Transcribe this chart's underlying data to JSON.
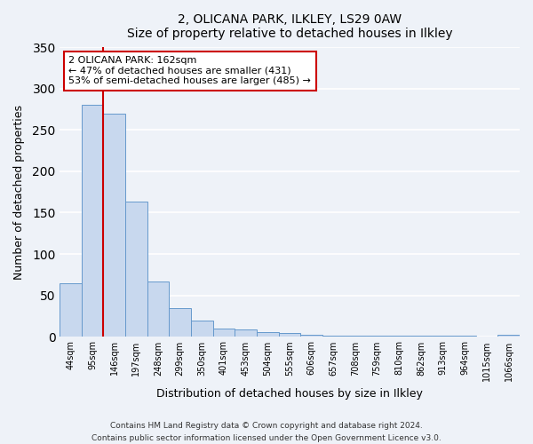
{
  "title": "2, OLICANA PARK, ILKLEY, LS29 0AW",
  "subtitle": "Size of property relative to detached houses in Ilkley",
  "xlabel": "Distribution of detached houses by size in Ilkley",
  "ylabel": "Number of detached properties",
  "bar_color": "#c8d8ee",
  "bar_edge_color": "#6699cc",
  "categories": [
    "44sqm",
    "95sqm",
    "146sqm",
    "197sqm",
    "248sqm",
    "299sqm",
    "350sqm",
    "401sqm",
    "453sqm",
    "504sqm",
    "555sqm",
    "606sqm",
    "657sqm",
    "708sqm",
    "759sqm",
    "810sqm",
    "862sqm",
    "913sqm",
    "964sqm",
    "1015sqm",
    "1066sqm"
  ],
  "values": [
    65,
    281,
    270,
    163,
    67,
    34,
    20,
    10,
    9,
    5,
    4,
    2,
    1,
    1,
    1,
    1,
    1,
    1,
    1,
    0,
    2
  ],
  "ylim": [
    0,
    350
  ],
  "yticks": [
    0,
    50,
    100,
    150,
    200,
    250,
    300,
    350
  ],
  "vline_color": "#cc0000",
  "annotation_title": "2 OLICANA PARK: 162sqm",
  "annotation_line1": "← 47% of detached houses are smaller (431)",
  "annotation_line2": "53% of semi-detached houses are larger (485) →",
  "annotation_box_facecolor": "#ffffff",
  "annotation_box_edgecolor": "#cc0000",
  "footer1": "Contains HM Land Registry data © Crown copyright and database right 2024.",
  "footer2": "Contains public sector information licensed under the Open Government Licence v3.0.",
  "background_color": "#eef2f8",
  "plot_background": "#eef2f8",
  "grid_color": "#ffffff"
}
